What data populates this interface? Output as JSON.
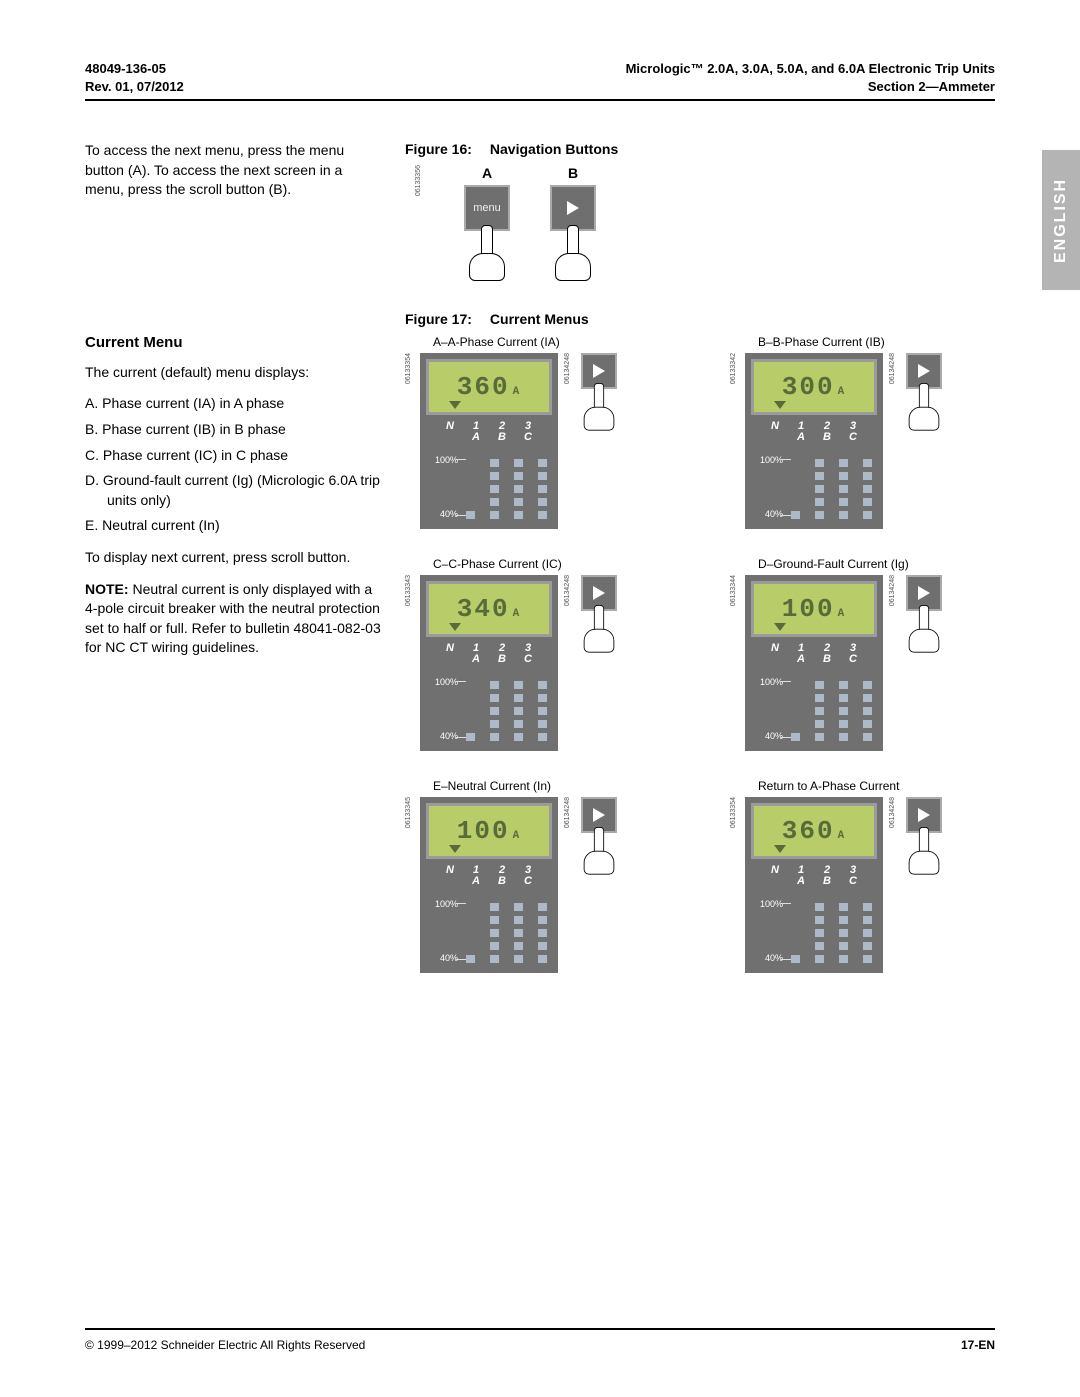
{
  "header": {
    "doc_number": "48049-136-05",
    "revision": "Rev. 01, 07/2012",
    "title": "Micrologic™ 2.0A, 3.0A, 5.0A, and 6.0A Electronic Trip Units",
    "section": "Section 2—Ammeter"
  },
  "lang_tab": "ENGLISH",
  "left": {
    "intro": "To access the next menu, press the menu button (A). To access the next screen in a menu, press the scroll button (B).",
    "heading_current_menu": "Current Menu",
    "current_menu_intro": "The current (default) menu displays:",
    "items": [
      "A.  Phase current (IA) in A phase",
      "B.  Phase current (IB) in B phase",
      "C.  Phase current (IC) in C phase",
      "D.  Ground-fault current (Ig) (Micrologic 6.0A trip units only)",
      "E.  Neutral current (In)"
    ],
    "after_list": "To display next current, press scroll button.",
    "note_label": "NOTE:",
    "note_body": " Neutral current is only displayed with a 4-pole circuit breaker with the neutral protection set to half or full. Refer to bulletin 48041-082-03 for NC CT wiring guidelines."
  },
  "fig16": {
    "title_num": "Figure 16:",
    "title_text": "Navigation Buttons",
    "A": "A",
    "B": "B",
    "menu_btn_label": "menu",
    "side_code": "06133356"
  },
  "fig17": {
    "title_num": "Figure 17:",
    "title_text": "Current Menus",
    "scale_100": "100%",
    "scale_40": "40%",
    "col_N": "N",
    "col_1": "1",
    "col_2": "2",
    "col_3": "3",
    "col_A": "A",
    "col_B": "B",
    "col_C": "C",
    "unit": "A",
    "menus": [
      {
        "caption": "A–A-Phase Current (IA)",
        "value": "360",
        "code_left": "06133354",
        "code_right": "06134248"
      },
      {
        "caption": "B–B-Phase Current (IB)",
        "value": "300",
        "code_left": "06133342",
        "code_right": "06134248"
      },
      {
        "caption": "C–C-Phase Current (IC)",
        "value": "340",
        "code_left": "06133343",
        "code_right": "06134248"
      },
      {
        "caption": "D–Ground-Fault Current (Ig)",
        "value": "100",
        "code_left": "06133344",
        "code_right": "06134248"
      },
      {
        "caption": "E–Neutral Current (In)",
        "value": "100",
        "code_left": "06133345",
        "code_right": "06134248"
      },
      {
        "caption": "Return to A-Phase Current",
        "value": "360",
        "code_left": "06133354",
        "code_right": "06134248"
      }
    ]
  },
  "footer": {
    "copyright": "© 1999–2012 Schneider Electric All Rights Reserved",
    "page": "17-EN"
  },
  "colors": {
    "lcd_bg": "#b8cc6a",
    "lcd_text": "#5a6b3a",
    "device_bg": "#707070",
    "segment": "#aeb9c8",
    "tab_bg": "#b4b4b4"
  }
}
